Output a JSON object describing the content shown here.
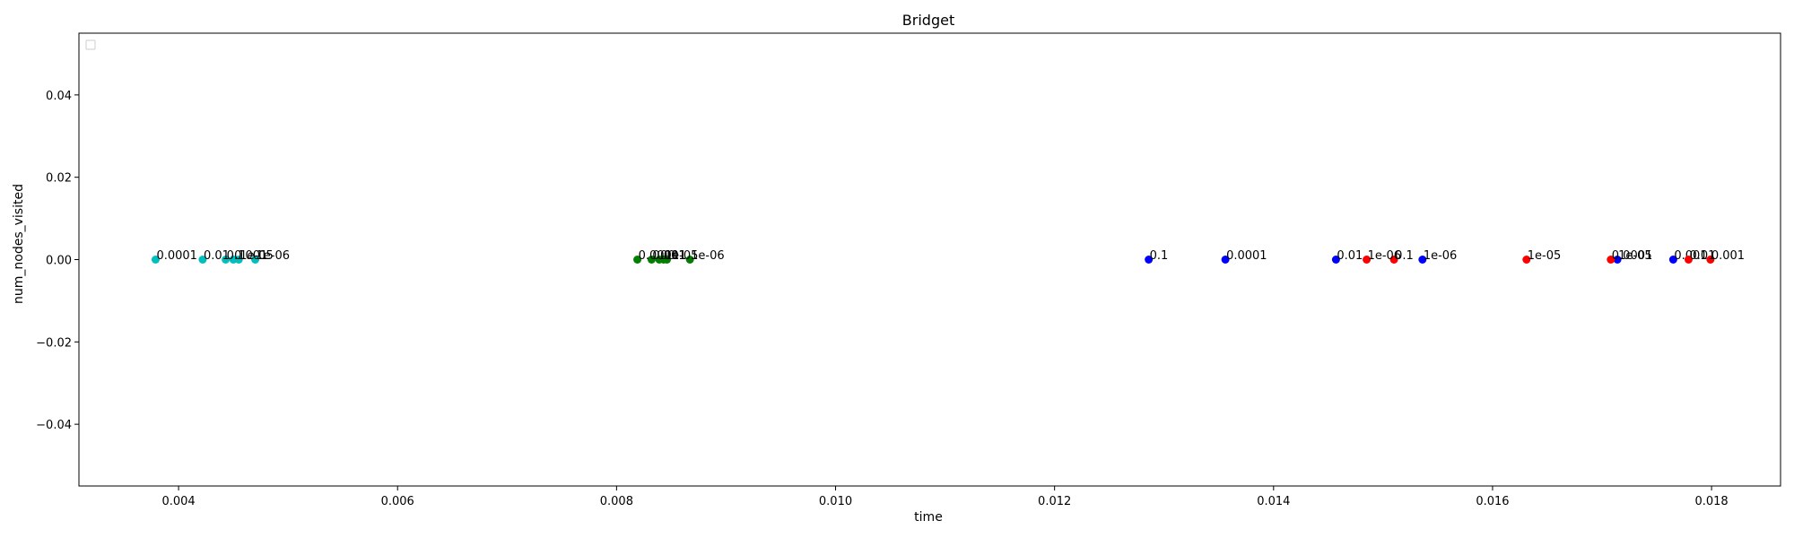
{
  "chart_data": {
    "type": "scatter",
    "title": "Bridget",
    "xlabel": "time",
    "ylabel": "num_nodes_visited",
    "xlim": [
      0.00309,
      0.01863
    ],
    "ylim": [
      -0.055,
      0.055
    ],
    "x_ticks": [
      0.004,
      0.006,
      0.008,
      0.01,
      0.012,
      0.014,
      0.016,
      0.018
    ],
    "x_tick_labels": [
      "0.004",
      "0.006",
      "0.008",
      "0.010",
      "0.012",
      "0.014",
      "0.016",
      "0.018"
    ],
    "y_ticks": [
      -0.04,
      -0.02,
      0.0,
      0.02,
      0.04
    ],
    "y_tick_labels": [
      "−0.04",
      "−0.02",
      "0.00",
      "0.02",
      "0.04"
    ],
    "grid": false,
    "legend": {
      "placement": "top-left",
      "entries": []
    },
    "series": [
      {
        "color": "#00bfbf",
        "points": [
          {
            "x": 0.00379,
            "y": 0,
            "label": "0.0001"
          },
          {
            "x": 0.00422,
            "y": 0,
            "label": "0.01"
          },
          {
            "x": 0.00443,
            "y": 0,
            "label": "0.1"
          },
          {
            "x": 0.0045,
            "y": 0,
            "label": "0.001"
          },
          {
            "x": 0.00455,
            "y": 0,
            "label": "1e-05"
          },
          {
            "x": 0.0047,
            "y": 0,
            "label": "1e-06"
          }
        ]
      },
      {
        "color": "#007f00",
        "points": [
          {
            "x": 0.00819,
            "y": 0,
            "label": "0.0001"
          },
          {
            "x": 0.00832,
            "y": 0,
            "label": "0.001"
          },
          {
            "x": 0.00839,
            "y": 0,
            "label": "0.01"
          },
          {
            "x": 0.00843,
            "y": 0,
            "label": "1e-05"
          },
          {
            "x": 0.00846,
            "y": 0,
            "label": "0.1"
          },
          {
            "x": 0.00867,
            "y": 0,
            "label": "1e-06"
          }
        ]
      },
      {
        "color": "#0000ff",
        "points": [
          {
            "x": 0.01286,
            "y": 0,
            "label": "0.1"
          },
          {
            "x": 0.01356,
            "y": 0,
            "label": "0.0001"
          },
          {
            "x": 0.01457,
            "y": 0,
            "label": "0.01"
          },
          {
            "x": 0.01536,
            "y": 0,
            "label": "1e-06"
          },
          {
            "x": 0.01714,
            "y": 0,
            "label": "1e-05"
          },
          {
            "x": 0.01765,
            "y": 0,
            "label": "0.001"
          }
        ]
      },
      {
        "color": "#ff0000",
        "points": [
          {
            "x": 0.01485,
            "y": 0,
            "label": "1e-06"
          },
          {
            "x": 0.0151,
            "y": 0,
            "label": "0.1"
          },
          {
            "x": 0.01631,
            "y": 0,
            "label": "1e-05"
          },
          {
            "x": 0.01708,
            "y": 0,
            "label": "0.0001"
          },
          {
            "x": 0.01779,
            "y": 0,
            "label": "0.01"
          },
          {
            "x": 0.01799,
            "y": 0,
            "label": "0.001"
          }
        ]
      }
    ]
  }
}
